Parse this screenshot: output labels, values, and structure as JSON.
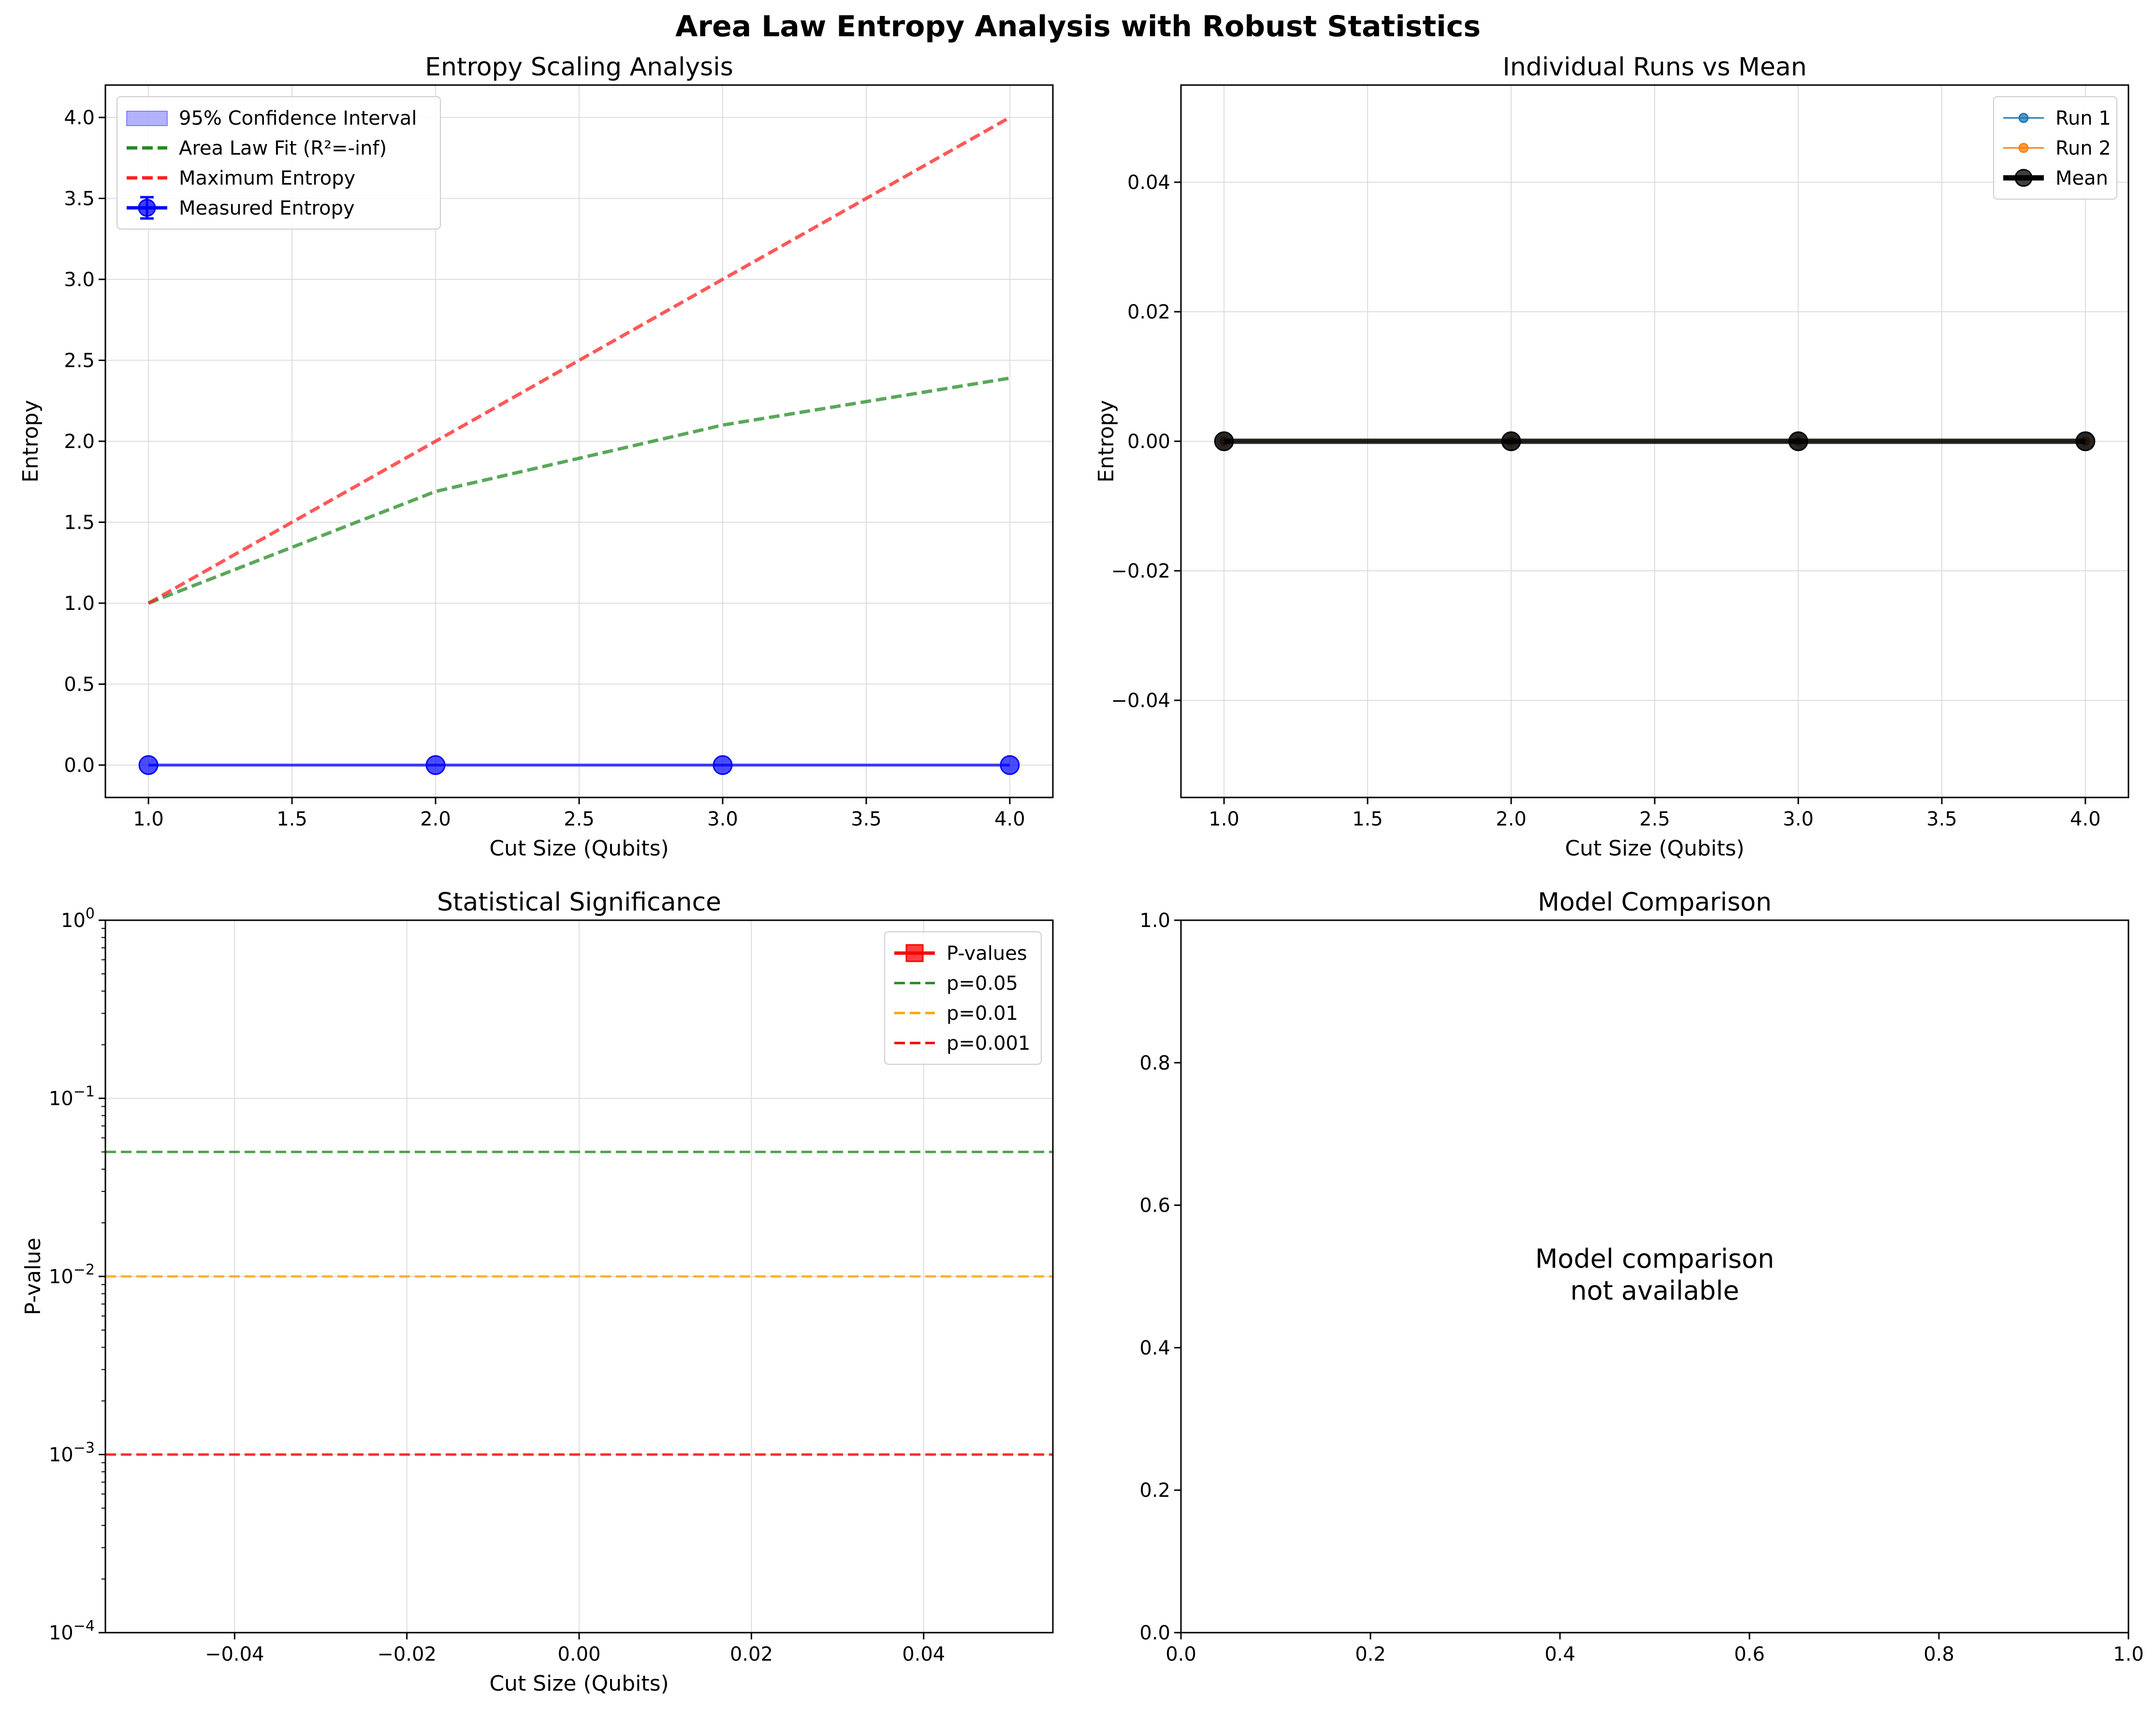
{
  "suptitle": "Area Law Entropy Analysis with Robust Statistics",
  "chart_data": [
    {
      "type": "line",
      "title": "Entropy Scaling Analysis",
      "xlabel": "Cut Size (Qubits)",
      "ylabel": "Entropy",
      "xlim": [
        0.85,
        4.15
      ],
      "ylim": [
        -0.2,
        4.2
      ],
      "xticks": [
        1.0,
        1.5,
        2.0,
        2.5,
        3.0,
        3.5,
        4.0
      ],
      "yticks": [
        0.0,
        0.5,
        1.0,
        1.5,
        2.0,
        2.5,
        3.0,
        3.5,
        4.0
      ],
      "grid": true,
      "legend": "top-left",
      "x": [
        1,
        2,
        3,
        4
      ],
      "series": [
        {
          "name": "95% Confidence Interval",
          "kind": "band",
          "color": "#0000ff",
          "lower": [
            0,
            0,
            0,
            0
          ],
          "upper": [
            0,
            0,
            0,
            0
          ]
        },
        {
          "name": "Area Law Fit (R²=-inf)",
          "kind": "line",
          "style": "dashed",
          "color": "#228b22",
          "values": [
            1.0,
            1.69,
            2.1,
            2.39
          ]
        },
        {
          "name": "Maximum Entropy",
          "kind": "line",
          "style": "dashed",
          "color": "#ff2020",
          "values": [
            1.0,
            2.0,
            3.0,
            4.0
          ]
        },
        {
          "name": "Measured Entropy",
          "kind": "errorbar",
          "style": "solid",
          "color": "#0000ff",
          "marker": "circle",
          "values": [
            0,
            0,
            0,
            0
          ],
          "errors": [
            0,
            0,
            0,
            0
          ]
        }
      ]
    },
    {
      "type": "line",
      "title": "Individual Runs vs Mean",
      "xlabel": "Cut Size (Qubits)",
      "ylabel": "Entropy",
      "xlim": [
        0.85,
        4.15
      ],
      "ylim": [
        -0.055,
        0.055
      ],
      "xticks": [
        1.0,
        1.5,
        2.0,
        2.5,
        3.0,
        3.5,
        4.0
      ],
      "yticks": [
        -0.04,
        -0.02,
        0.0,
        0.02,
        0.04
      ],
      "ytick_labels": [
        "−0.04",
        "−0.02",
        "0.00",
        "0.02",
        "0.04"
      ],
      "grid": true,
      "legend": "top-right",
      "x": [
        1,
        2,
        3,
        4
      ],
      "series": [
        {
          "name": "Run 1",
          "kind": "line",
          "color": "#1f77b4",
          "marker": "small-circle",
          "values": [
            0,
            0,
            0,
            0
          ]
        },
        {
          "name": "Run 2",
          "kind": "line",
          "color": "#ff7f0e",
          "marker": "small-circle",
          "values": [
            0,
            0,
            0,
            0
          ]
        },
        {
          "name": "Mean",
          "kind": "line",
          "color": "#000000",
          "marker": "circle",
          "values": [
            0,
            0,
            0,
            0
          ]
        }
      ]
    },
    {
      "type": "line",
      "title": "Statistical Significance",
      "xlabel": "Cut Size (Qubits)",
      "ylabel": "P-value",
      "xlim": [
        -0.055,
        0.055
      ],
      "ylim": [
        0.0001,
        1
      ],
      "yscale": "log",
      "xticks": [
        -0.04,
        -0.02,
        0.0,
        0.02,
        0.04
      ],
      "xtick_labels": [
        "−0.04",
        "−0.02",
        "0.00",
        "0.02",
        "0.04"
      ],
      "yticks": [
        0.0001,
        0.001,
        0.01,
        0.1,
        1
      ],
      "ytick_labels": [
        [
          "10",
          "−4"
        ],
        [
          "10",
          "−3"
        ],
        [
          "10",
          "−2"
        ],
        [
          "10",
          "−1"
        ],
        [
          "10",
          "0"
        ]
      ],
      "grid": true,
      "legend": "top-right",
      "series": [
        {
          "name": "P-values",
          "kind": "line",
          "color": "#ff0000",
          "marker": "square",
          "values": []
        },
        {
          "name": "p=0.05",
          "kind": "hline",
          "style": "dashed",
          "color": "#228b22",
          "value": 0.05
        },
        {
          "name": "p=0.01",
          "kind": "hline",
          "style": "dashed",
          "color": "#ffa500",
          "value": 0.01
        },
        {
          "name": "p=0.001",
          "kind": "hline",
          "style": "dashed",
          "color": "#ff0000",
          "value": 0.001
        }
      ]
    },
    {
      "type": "line",
      "title": "Model Comparison",
      "xlim": [
        0,
        1
      ],
      "ylim": [
        0,
        1
      ],
      "xticks": [
        0.0,
        0.2,
        0.4,
        0.6,
        0.8,
        1.0
      ],
      "yticks": [
        0.0,
        0.2,
        0.4,
        0.6,
        0.8,
        1.0
      ],
      "grid": false,
      "annotation": [
        "Model comparison",
        "not available"
      ],
      "series": []
    }
  ]
}
